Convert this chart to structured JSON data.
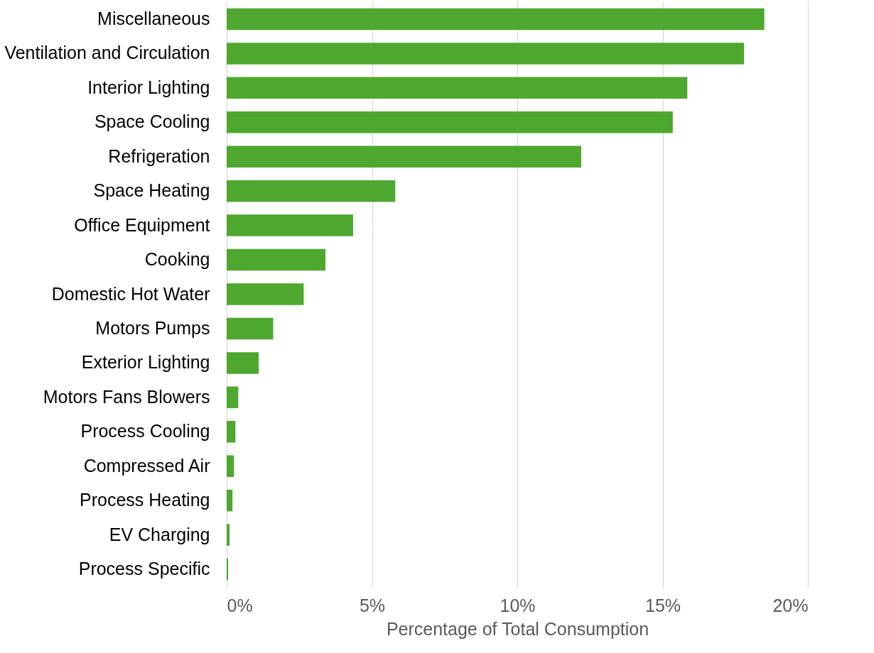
{
  "chart_data": {
    "type": "bar",
    "orientation": "horizontal",
    "xlabel": "Percentage of Total Consumption",
    "categories": [
      "Miscellaneous",
      "Ventilation and Circulation",
      "Interior Lighting",
      "Space Cooling",
      "Refrigeration",
      "Space Heating",
      "Office Equipment",
      "Cooking",
      "Domestic Hot Water",
      "Motors Pumps",
      "Exterior Lighting",
      "Motors Fans Blowers",
      "Process Cooling",
      "Compressed Air",
      "Process Heating",
      "EV Charging",
      "Process Specific"
    ],
    "values": [
      18.5,
      17.8,
      15.85,
      15.35,
      12.2,
      5.8,
      4.35,
      3.4,
      2.65,
      1.6,
      1.1,
      0.4,
      0.3,
      0.25,
      0.2,
      0.1,
      0.05
    ],
    "color": "#4ea72e",
    "xlim": [
      0,
      20
    ],
    "xticks": [
      {
        "value": 0,
        "label": "0%"
      },
      {
        "value": 5,
        "label": "5%"
      },
      {
        "value": 10,
        "label": "10%"
      },
      {
        "value": 15,
        "label": "15%"
      },
      {
        "value": 20,
        "label": "20%"
      }
    ],
    "grid": "x"
  }
}
